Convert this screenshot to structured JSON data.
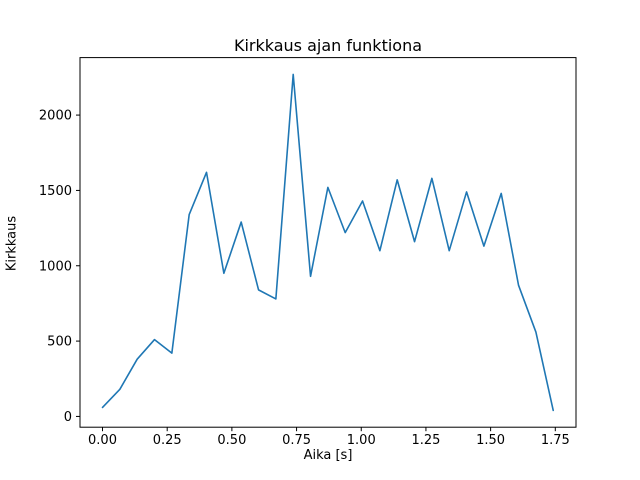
{
  "figure": {
    "background": "#ffffff"
  },
  "chart_data": {
    "type": "line",
    "title": "Kirkkaus ajan funktiona",
    "xlabel": "Aika [s]",
    "ylabel": "Kirkkaus",
    "line_color": "#1f77b4",
    "grid": false,
    "legend": null,
    "xlim": [
      -0.087,
      1.83
    ],
    "ylim": [
      -71.5,
      2381.5
    ],
    "x_ticks": {
      "values": [
        0.0,
        0.25,
        0.5,
        0.75,
        1.0,
        1.25,
        1.5,
        1.75
      ],
      "labels": [
        "0.00",
        "0.25",
        "0.50",
        "0.75",
        "1.00",
        "1.25",
        "1.50",
        "1.75"
      ]
    },
    "y_ticks": {
      "values": [
        0,
        500,
        1000,
        1500,
        2000
      ],
      "labels": [
        "0",
        "500",
        "1000",
        "1500",
        "2000"
      ]
    },
    "x": [
      0.0,
      0.067,
      0.134,
      0.201,
      0.268,
      0.335,
      0.402,
      0.469,
      0.536,
      0.603,
      0.67,
      0.737,
      0.804,
      0.871,
      0.938,
      1.005,
      1.072,
      1.139,
      1.206,
      1.273,
      1.34,
      1.407,
      1.474,
      1.541,
      1.608,
      1.675,
      1.742
    ],
    "y": [
      60,
      180,
      380,
      510,
      420,
      1340,
      1620,
      950,
      1290,
      840,
      780,
      2270,
      930,
      1520,
      1220,
      1430,
      1100,
      1570,
      1160,
      1580,
      1100,
      1490,
      1130,
      1480,
      870,
      560,
      40
    ]
  }
}
